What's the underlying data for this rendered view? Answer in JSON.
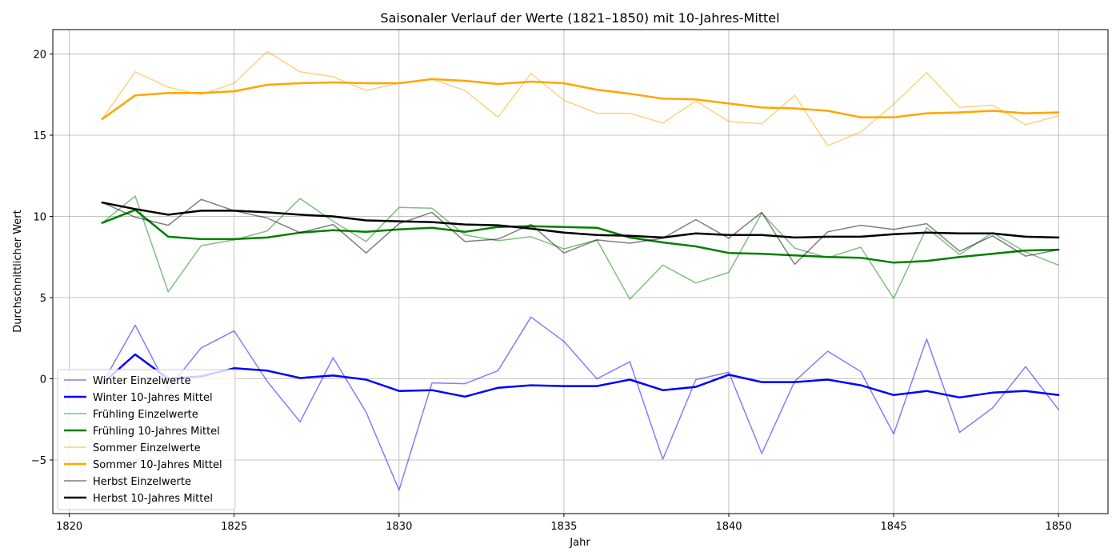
{
  "chart_data": {
    "type": "line",
    "title": "Saisonaler Verlauf der Werte (1821–1850) mit 10-Jahres-Mittel",
    "xlabel": "Jahr",
    "ylabel": "Durchschnittlicher Wert",
    "xlim": [
      1819.5,
      1851.5
    ],
    "ylim": [
      -8.3,
      21.5
    ],
    "xticks": [
      1820,
      1825,
      1830,
      1835,
      1840,
      1845,
      1850
    ],
    "yticks": [
      -5,
      0,
      5,
      10,
      15,
      20
    ],
    "grid": true,
    "legend_position": "bottom-left",
    "x": [
      1821,
      1822,
      1823,
      1824,
      1825,
      1826,
      1827,
      1828,
      1829,
      1830,
      1831,
      1832,
      1833,
      1834,
      1835,
      1836,
      1837,
      1838,
      1839,
      1840,
      1841,
      1842,
      1843,
      1844,
      1845,
      1846,
      1847,
      1848,
      1849,
      1850
    ],
    "series": [
      {
        "name": "Winter Einzelwerte",
        "color": "#0000ff",
        "opacity": 0.5,
        "width": 1.5,
        "values": [
          -0.3,
          3.3,
          -0.6,
          1.9,
          2.95,
          -0.15,
          -2.65,
          1.3,
          -2.05,
          -6.85,
          -0.25,
          -0.3,
          0.5,
          3.8,
          2.3,
          0.0,
          1.05,
          -4.95,
          -0.05,
          0.4,
          -4.6,
          -0.15,
          1.7,
          0.45,
          -3.4,
          2.45,
          -3.3,
          -1.8,
          0.75,
          -1.9
        ]
      },
      {
        "name": "Winter 10-Jahres Mittel",
        "color": "#0000ff",
        "opacity": 1,
        "width": 2.5,
        "values": [
          -0.3,
          1.5,
          0.0,
          0.15,
          0.65,
          0.5,
          0.05,
          0.2,
          -0.05,
          -0.75,
          -0.7,
          -1.1,
          -0.55,
          -0.4,
          -0.45,
          -0.45,
          -0.05,
          -0.7,
          -0.5,
          0.25,
          -0.2,
          -0.2,
          -0.05,
          -0.4,
          -1.0,
          -0.75,
          -1.15,
          -0.85,
          -0.75,
          -1.0
        ]
      },
      {
        "name": "Frühling Einzelwerte",
        "color": "#008000",
        "opacity": 0.5,
        "width": 1.5,
        "values": [
          9.6,
          11.25,
          5.35,
          8.2,
          8.55,
          9.1,
          11.1,
          9.7,
          8.45,
          10.55,
          10.5,
          8.85,
          8.5,
          8.75,
          8.0,
          8.55,
          4.9,
          7.0,
          5.9,
          6.55,
          10.2,
          8.05,
          7.45,
          8.1,
          4.95,
          9.3,
          7.65,
          9.0,
          7.8,
          7.0
        ]
      },
      {
        "name": "Frühling 10-Jahres Mittel",
        "color": "#008000",
        "opacity": 1,
        "width": 2.5,
        "values": [
          9.6,
          10.4,
          8.75,
          8.6,
          8.6,
          8.7,
          9.0,
          9.15,
          9.05,
          9.2,
          9.3,
          9.05,
          9.35,
          9.4,
          9.35,
          9.3,
          8.7,
          8.4,
          8.15,
          7.75,
          7.7,
          7.6,
          7.5,
          7.45,
          7.15,
          7.25,
          7.5,
          7.7,
          7.9,
          7.95
        ]
      },
      {
        "name": "Sommer Einzelwerte",
        "color": "#ffa500",
        "opacity": 0.5,
        "width": 1.5,
        "values": [
          16.0,
          18.9,
          17.95,
          17.5,
          18.2,
          20.15,
          18.9,
          18.6,
          17.75,
          18.2,
          18.45,
          17.75,
          16.1,
          18.8,
          17.15,
          16.35,
          16.35,
          15.75,
          17.1,
          15.85,
          15.7,
          17.45,
          14.35,
          15.2,
          16.9,
          18.85,
          16.7,
          16.85,
          15.65,
          16.2
        ]
      },
      {
        "name": "Sommer 10-Jahres Mittel",
        "color": "#ffa500",
        "opacity": 1,
        "width": 2.5,
        "values": [
          16.0,
          17.45,
          17.6,
          17.6,
          17.7,
          18.1,
          18.2,
          18.25,
          18.2,
          18.2,
          18.45,
          18.35,
          18.15,
          18.3,
          18.2,
          17.8,
          17.55,
          17.25,
          17.2,
          16.95,
          16.7,
          16.65,
          16.5,
          16.1,
          16.1,
          16.35,
          16.4,
          16.5,
          16.35,
          16.4
        ]
      },
      {
        "name": "Herbst Einzelwerte",
        "color": "#000000",
        "opacity": 0.5,
        "width": 1.5,
        "values": [
          10.85,
          9.95,
          9.45,
          11.05,
          10.35,
          9.9,
          9.0,
          9.5,
          7.75,
          9.55,
          10.25,
          8.45,
          8.6,
          9.5,
          7.75,
          8.55,
          8.35,
          8.65,
          9.8,
          8.65,
          10.25,
          7.05,
          9.05,
          9.45,
          9.2,
          9.55,
          7.85,
          8.8,
          7.55,
          7.95
        ]
      },
      {
        "name": "Herbst 10-Jahres Mittel",
        "color": "#000000",
        "opacity": 1,
        "width": 2.5,
        "values": [
          10.85,
          10.45,
          10.1,
          10.35,
          10.35,
          10.25,
          10.1,
          10.0,
          9.75,
          9.7,
          9.65,
          9.5,
          9.45,
          9.25,
          9.0,
          8.85,
          8.8,
          8.7,
          8.95,
          8.85,
          8.85,
          8.7,
          8.75,
          8.75,
          8.9,
          9.0,
          8.95,
          8.95,
          8.75,
          8.7
        ]
      }
    ]
  }
}
